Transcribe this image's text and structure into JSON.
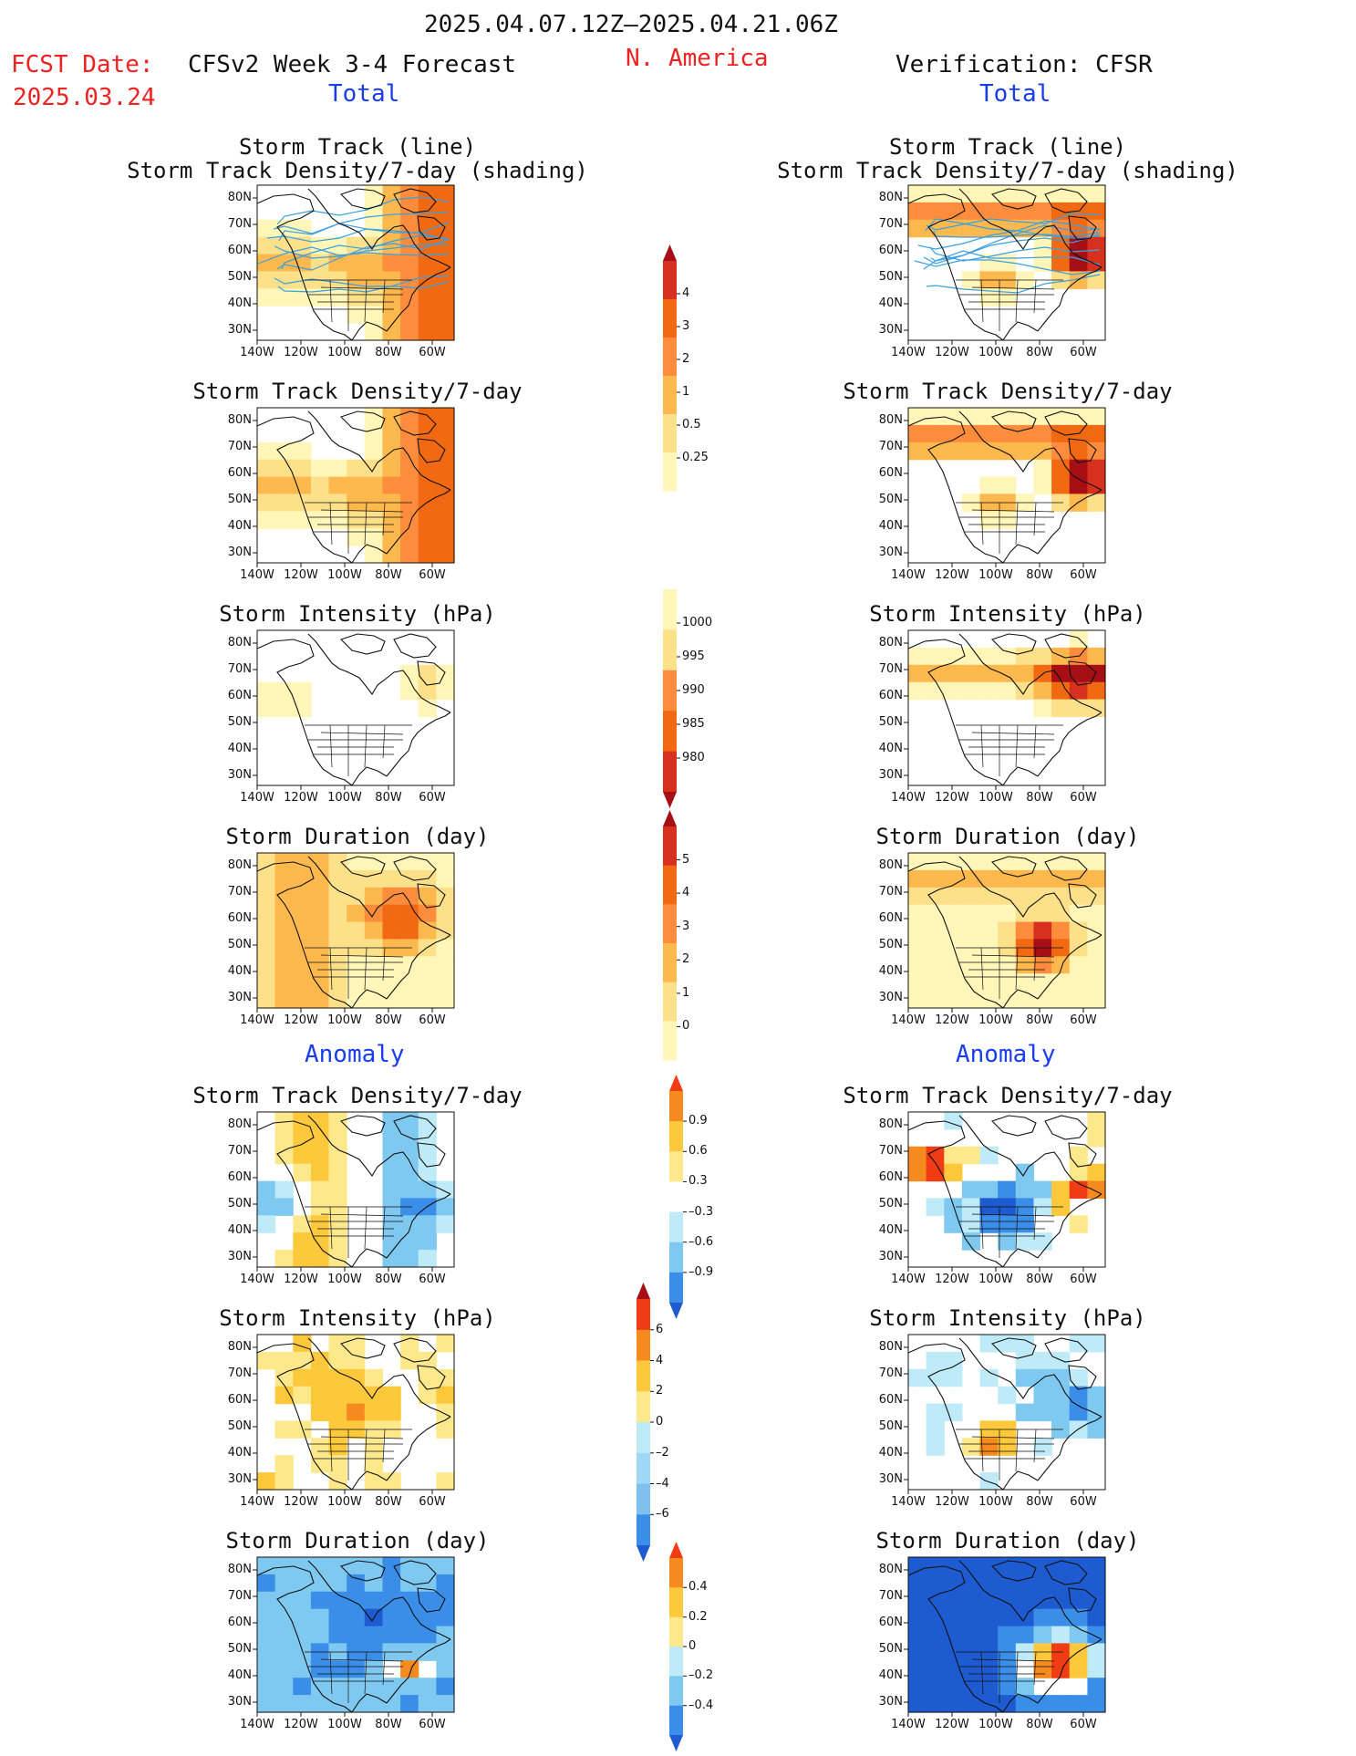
{
  "header": {
    "period": "2025.04.07.12Z–2025.04.21.06Z",
    "fcst_label": "FCST Date:",
    "fcst_date": "2025.03.24",
    "model_title": "CFSv2 Week 3-4 Forecast",
    "region": "N. America",
    "verification": "Verification: CFSR"
  },
  "section_labels": {
    "total": "Total",
    "anomaly": "Anomaly"
  },
  "axes": {
    "lat_ticks": [
      "80N",
      "70N",
      "60N",
      "50N",
      "40N",
      "30N"
    ],
    "lon_ticks": [
      "140W",
      "120W",
      "100W",
      "80W",
      "60W"
    ]
  },
  "panels": [
    {
      "id": "p1",
      "col": "left",
      "row": 0,
      "title_lines": [
        "Storm Track (line)",
        "Storm Track Density/7-day (shading)"
      ],
      "field": "density_total",
      "lines": true,
      "scheme": "warm"
    },
    {
      "id": "p2",
      "col": "right",
      "row": 0,
      "title_lines": [
        "Storm Track (line)",
        "Storm Track Density/7-day (shading)"
      ],
      "field": "density_total_obs",
      "lines": true,
      "scheme": "warm"
    },
    {
      "id": "p3",
      "col": "left",
      "row": 1,
      "title_lines": [
        "Storm Track Density/7-day"
      ],
      "field": "density_total",
      "lines": false,
      "scheme": "warm"
    },
    {
      "id": "p4",
      "col": "right",
      "row": 1,
      "title_lines": [
        "Storm Track Density/7-day"
      ],
      "field": "density_total_obs",
      "lines": false,
      "scheme": "warm"
    },
    {
      "id": "p5",
      "col": "left",
      "row": 2,
      "title_lines": [
        "Storm Intensity (hPa)"
      ],
      "field": "intensity_total",
      "lines": false,
      "scheme": "warm"
    },
    {
      "id": "p6",
      "col": "right",
      "row": 2,
      "title_lines": [
        "Storm Intensity (hPa)"
      ],
      "field": "intensity_total_obs",
      "lines": false,
      "scheme": "warm"
    },
    {
      "id": "p7",
      "col": "left",
      "row": 3,
      "title_lines": [
        "Storm Duration (day)"
      ],
      "field": "duration_total",
      "lines": false,
      "scheme": "warm"
    },
    {
      "id": "p8",
      "col": "right",
      "row": 3,
      "title_lines": [
        "Storm Duration (day)"
      ],
      "field": "duration_total_obs",
      "lines": false,
      "scheme": "warm"
    },
    {
      "id": "p9",
      "col": "left",
      "row": 4,
      "title_lines": [
        "Storm Track Density/7-day"
      ],
      "field": "density_anom",
      "lines": false,
      "scheme": "div"
    },
    {
      "id": "p10",
      "col": "right",
      "row": 4,
      "title_lines": [
        "Storm Track Density/7-day"
      ],
      "field": "density_anom_obs",
      "lines": false,
      "scheme": "div"
    },
    {
      "id": "p11",
      "col": "left",
      "row": 5,
      "title_lines": [
        "Storm Intensity (hPa)"
      ],
      "field": "intensity_anom",
      "lines": false,
      "scheme": "div"
    },
    {
      "id": "p12",
      "col": "right",
      "row": 5,
      "title_lines": [
        "Storm Intensity (hPa)"
      ],
      "field": "intensity_anom_obs",
      "lines": false,
      "scheme": "div"
    },
    {
      "id": "p13",
      "col": "left",
      "row": 6,
      "title_lines": [
        "Storm Duration (day)"
      ],
      "field": "duration_anom",
      "lines": false,
      "scheme": "div"
    },
    {
      "id": "p14",
      "col": "right",
      "row": 6,
      "title_lines": [
        "Storm Duration (day)"
      ],
      "field": "duration_anom_obs",
      "lines": false,
      "scheme": "div"
    }
  ],
  "colorbars": [
    {
      "id": "cb_density",
      "labels": [
        "4",
        "3",
        "2",
        "1",
        "0.5",
        "0.25"
      ],
      "colors": [
        "#a50f15",
        "#d7301f",
        "#f16913",
        "#fd8d3c",
        "#fdb84e",
        "#fde08a",
        "#fff6b8"
      ],
      "tri_top": true,
      "tri_bottom": false
    },
    {
      "id": "cb_intensity",
      "labels": [
        "1000",
        "995",
        "990",
        "985",
        "980"
      ],
      "colors": [
        "#fff6b8",
        "#fde08a",
        "#fd8d3c",
        "#f16913",
        "#d7301f",
        "#a50f15"
      ],
      "tri_top": false,
      "tri_bottom": true
    },
    {
      "id": "cb_duration",
      "labels": [
        "5",
        "4",
        "3",
        "2",
        "1",
        "0"
      ],
      "colors": [
        "#a50f15",
        "#d7301f",
        "#f16913",
        "#fd8d3c",
        "#fdb84e",
        "#fde08a",
        "#fff6b8"
      ],
      "tri_top": true,
      "tri_bottom": false
    },
    {
      "id": "cb_anom_density",
      "labels": [
        "0.9",
        "0.6",
        "0.3",
        "–0.3",
        "–0.6",
        "–0.9"
      ],
      "colors": [
        "#f03c14",
        "#f58a1e",
        "#fdc83c",
        "#fde98c",
        "#ffffff",
        "#bfeaf7",
        "#7fc8f0",
        "#3a8ee8",
        "#1e5ad0"
      ],
      "tri_top": true,
      "tri_bottom": true
    },
    {
      "id": "cb_anom_intensity",
      "labels": [
        "6",
        "4",
        "2",
        "0",
        "–2",
        "–4",
        "–6"
      ],
      "colors": [
        "#a50f15",
        "#f03c14",
        "#f58a1e",
        "#fdc83c",
        "#fde98c",
        "#bfeaf7",
        "#9fd8f5",
        "#7fc0ee",
        "#3a8ee8",
        "#1e5ad0"
      ],
      "tri_top": true,
      "tri_bottom": true
    },
    {
      "id": "cb_anom_duration",
      "labels": [
        "0.4",
        "0.2",
        "0",
        "–0.2",
        "–0.4"
      ],
      "colors": [
        "#f03c14",
        "#f58a1e",
        "#fdc83c",
        "#fde98c",
        "#bfeaf7",
        "#7fc8f0",
        "#3a8ee8",
        "#1e5ad0"
      ],
      "tri_top": true,
      "tri_bottom": true
    }
  ],
  "field_colors": {
    "warm": [
      "#fff6b8",
      "#fde08a",
      "#fdb84e",
      "#fd8d3c",
      "#f16913",
      "#d7301f",
      "#a50f15"
    ],
    "div": [
      "#1e5ad0",
      "#3a8ee8",
      "#7fc8f0",
      "#bfeaf7",
      "#fde98c",
      "#fdc83c",
      "#f58a1e",
      "#f03c14"
    ]
  },
  "track_color": "#3ba0e0"
}
